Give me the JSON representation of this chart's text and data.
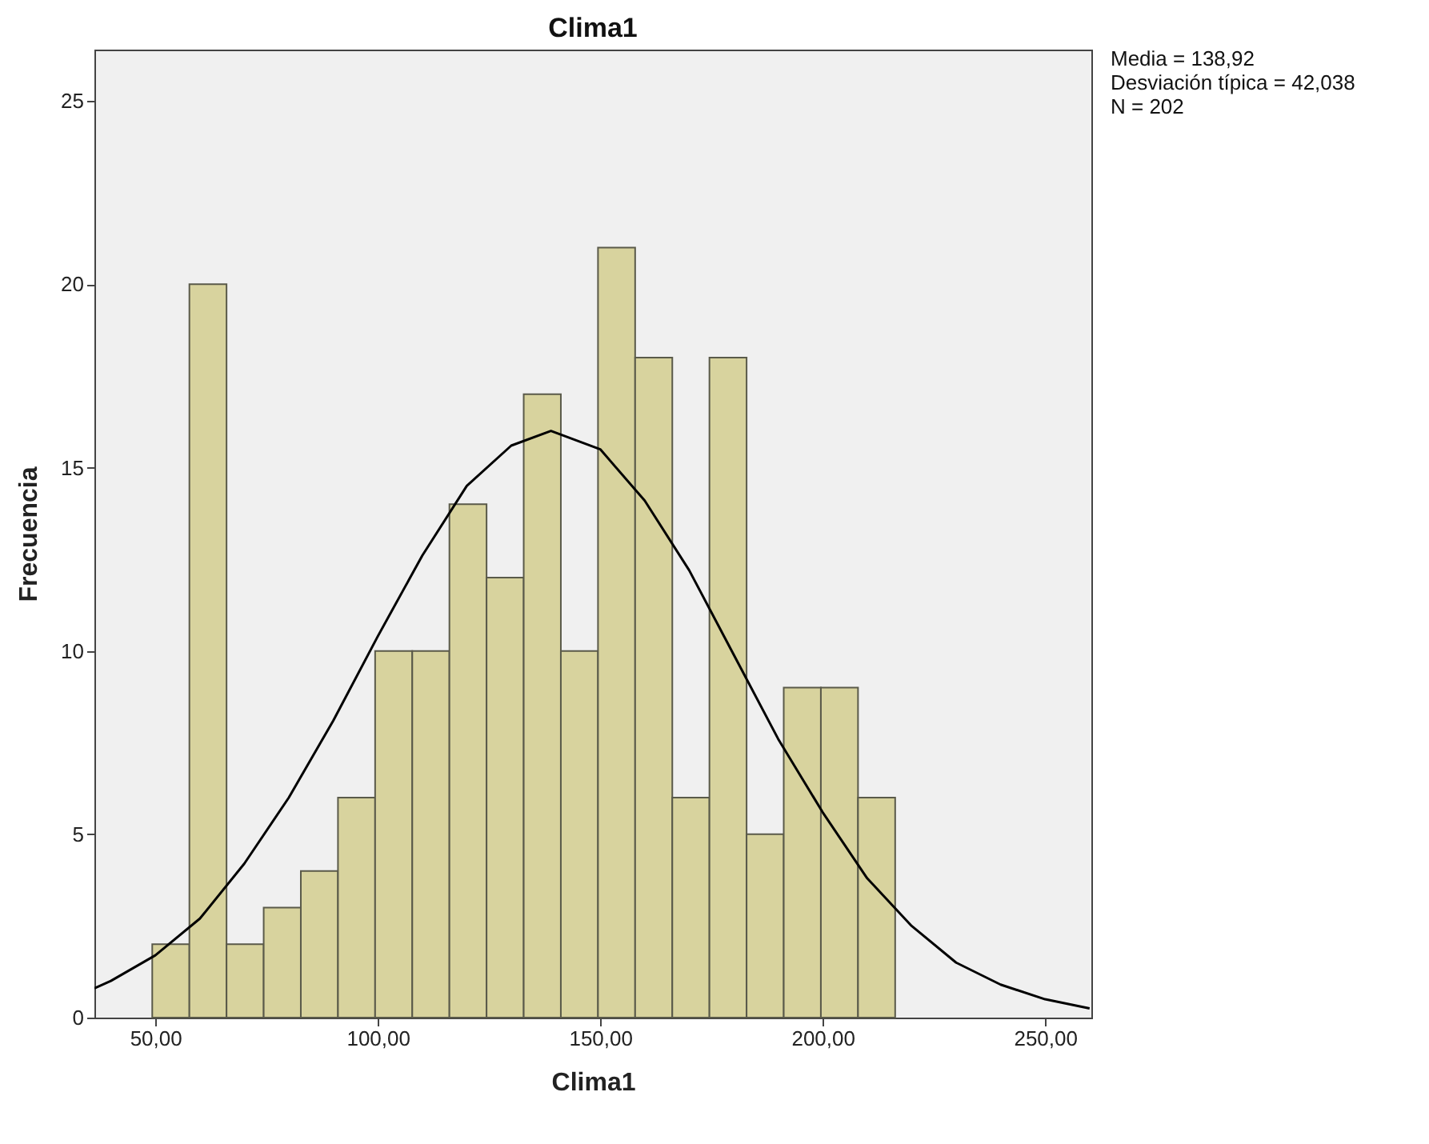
{
  "chart_data": {
    "type": "histogram",
    "title": "Clima1",
    "xlabel": "Clima1",
    "ylabel": "Frecuencia",
    "annotations": [
      "Media = 138,92",
      "Desviación típica = 42,038",
      "N = 202"
    ],
    "bins": [
      49.3,
      57.65,
      66.0,
      74.35,
      82.7,
      91.05,
      99.4,
      107.75,
      116.1,
      124.45,
      132.8,
      141.15,
      149.5,
      157.85,
      166.2,
      174.55,
      182.9,
      191.25,
      199.6,
      207.95,
      216.3
    ],
    "series": [
      {
        "color": "#d8d39e",
        "values": [
          2,
          20,
          2,
          3,
          4,
          6,
          10,
          10,
          14,
          12,
          17,
          10,
          21,
          18,
          6,
          18,
          5,
          9,
          9,
          6
        ]
      },
      {
        "type": "line",
        "color": "#000000",
        "x": [
          36.3,
          40,
          50,
          60,
          70,
          80,
          90,
          100,
          110,
          120,
          130,
          138.92,
          150,
          160,
          170,
          180,
          190,
          200,
          210,
          220,
          230,
          240,
          250,
          260
        ],
        "values": [
          0.8,
          1.0,
          1.7,
          2.7,
          4.2,
          6.0,
          8.1,
          10.4,
          12.6,
          14.5,
          15.6,
          16.0,
          15.5,
          14.1,
          12.2,
          9.9,
          7.6,
          5.6,
          3.8,
          2.5,
          1.5,
          0.9,
          0.5,
          0.25
        ]
      }
    ],
    "xlim": [
      36.3,
      260.4
    ],
    "xticks": [
      {
        "value": 50,
        "label": "50,00"
      },
      {
        "value": 100,
        "label": "100,00"
      },
      {
        "value": 150,
        "label": "150,00"
      },
      {
        "value": 200,
        "label": "200,00"
      },
      {
        "value": 250,
        "label": "250,00"
      }
    ],
    "ylim": [
      0,
      26.4
    ],
    "yticks": [
      0,
      5,
      10,
      15,
      20,
      25
    ],
    "grid": false
  }
}
